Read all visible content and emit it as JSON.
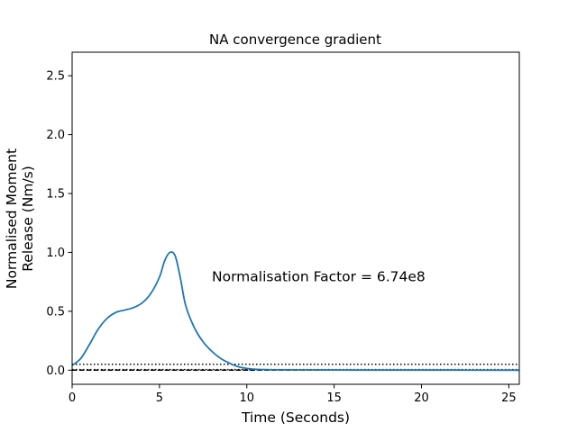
{
  "chart_data": {
    "type": "line",
    "title": "NA convergence gradient",
    "xlabel": "Time (Seconds)",
    "ylabel_lines": [
      "Normalised Moment",
      "Release (Nm/s)"
    ],
    "xlim": [
      0,
      25.6
    ],
    "ylim": [
      -0.12,
      2.7
    ],
    "x_ticks": [
      0,
      5,
      10,
      15,
      20,
      25
    ],
    "y_ticks": [
      0.0,
      0.5,
      1.0,
      1.5,
      2.0,
      2.5
    ],
    "x_tick_labels": [
      "0",
      "5",
      "10",
      "15",
      "20",
      "25"
    ],
    "y_tick_labels": [
      "0.0",
      "0.5",
      "1.0",
      "1.5",
      "2.0",
      "2.5"
    ],
    "grid": false,
    "annotation": {
      "text": "Normalisation Factor = 6.74e8",
      "x": 8.0,
      "y": 0.8
    },
    "series": [
      {
        "color": "#1f77b4",
        "x": [
          0.0,
          0.5,
          1.0,
          1.5,
          2.0,
          2.5,
          3.0,
          3.5,
          4.0,
          4.5,
          5.0,
          5.3,
          5.6,
          5.9,
          6.2,
          6.5,
          7.0,
          7.5,
          8.0,
          8.5,
          9.0,
          9.5,
          10.0,
          10.5,
          11.0,
          12.0,
          14.0,
          16.0,
          20.0,
          25.6
        ],
        "y": [
          0.04,
          0.1,
          0.22,
          0.35,
          0.44,
          0.49,
          0.51,
          0.53,
          0.57,
          0.65,
          0.79,
          0.93,
          1.0,
          0.97,
          0.78,
          0.55,
          0.36,
          0.24,
          0.16,
          0.1,
          0.06,
          0.03,
          0.015,
          0.008,
          0.005,
          0.003,
          0.002,
          0.001,
          0.001,
          0.0
        ]
      }
    ],
    "hlines": [
      {
        "y": 0.0,
        "style": "dashed",
        "color": "#000000"
      },
      {
        "y": 0.05,
        "style": "dotted",
        "color": "#000000"
      },
      {
        "y": 0.005,
        "style": "dotted",
        "color": "#000000"
      }
    ]
  }
}
